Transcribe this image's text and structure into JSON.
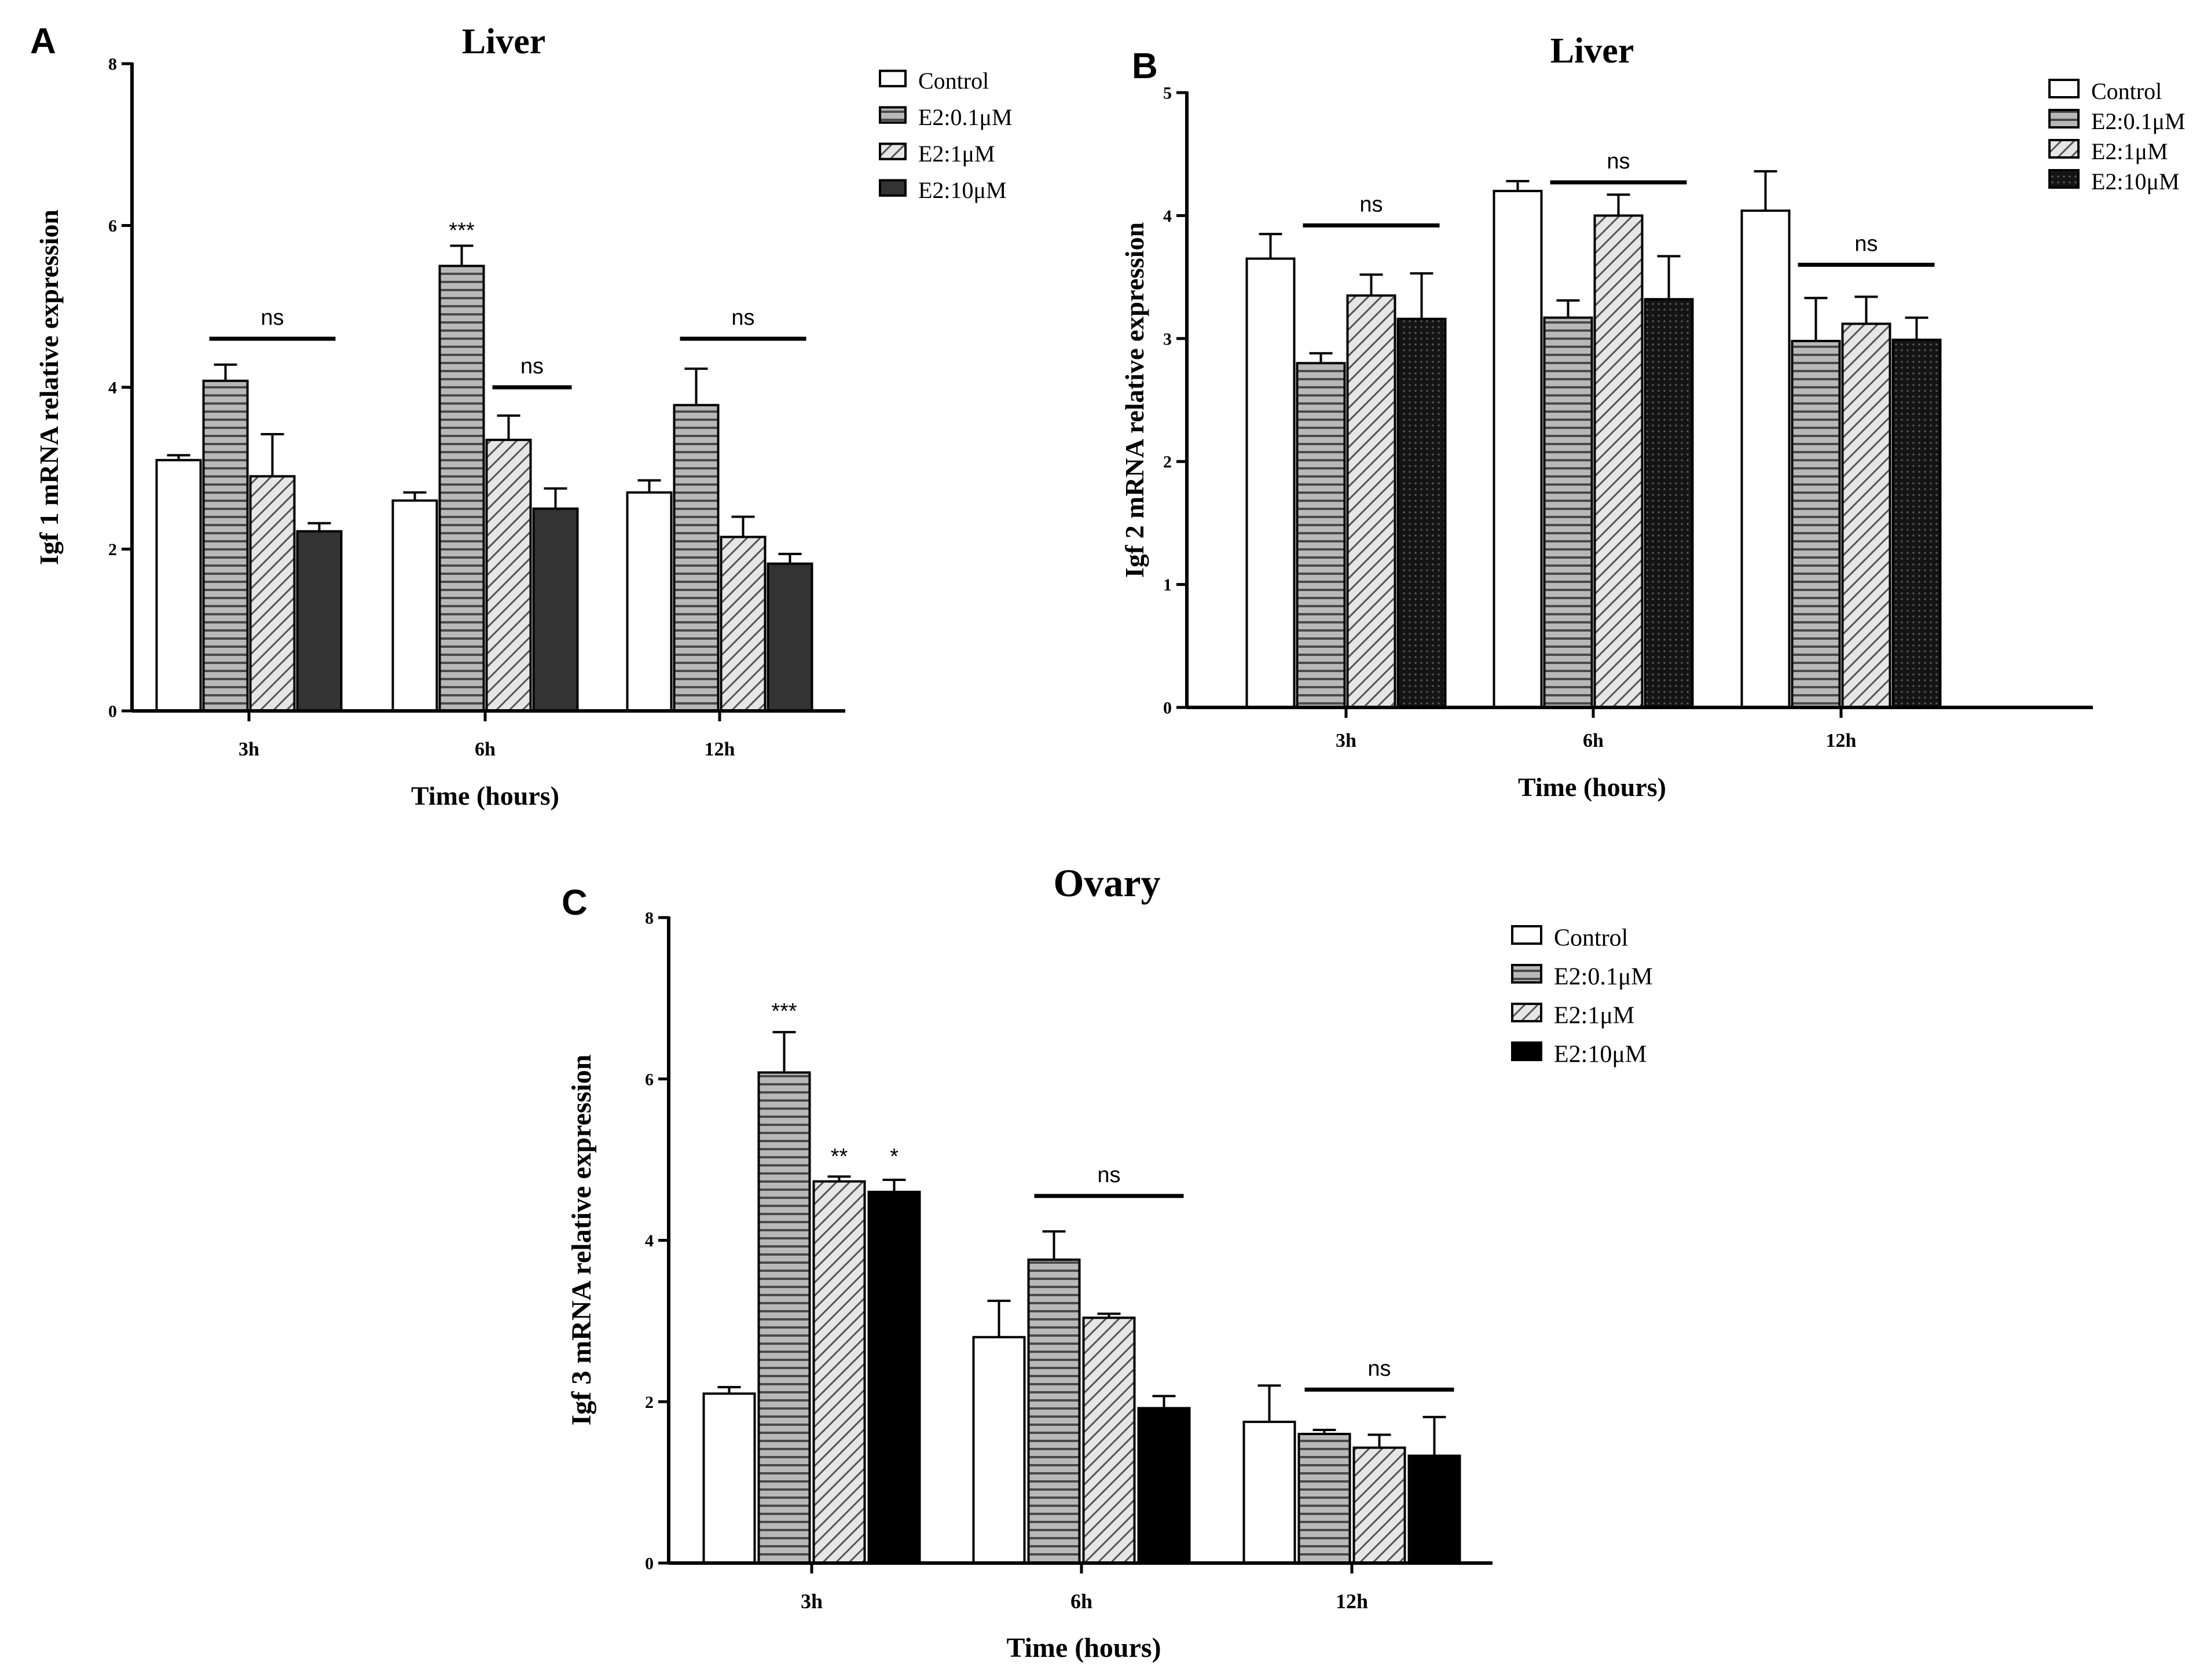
{
  "colors": {
    "axis": "#000000",
    "control": "#ffffff",
    "e2_01": "#a8a8a8",
    "e2_1": "#c8c8c8",
    "e2_10_A": "#333333",
    "e2_10_B": "#111111",
    "e2_10_C": "#000000"
  },
  "chart_data": [
    {
      "panel": "A",
      "type": "bar",
      "title": "Liver",
      "xlabel": "Time (hours)",
      "ylabel": "Igf 1 mRNA relative expression",
      "ylim": [
        0,
        8
      ],
      "yticks": [
        "0",
        "2",
        "4",
        "6",
        "8"
      ],
      "categories": [
        "3h",
        "6h",
        "12h"
      ],
      "legend": [
        "Control",
        "E2:0.1μM",
        "E2:1μM",
        "E2:10μM"
      ],
      "series": [
        {
          "name": "Control",
          "pattern": "white",
          "values": [
            3.1,
            2.6,
            2.7
          ],
          "errors": [
            0.06,
            0.1,
            0.15
          ]
        },
        {
          "name": "E2:0.1μM",
          "pattern": "hlines",
          "values": [
            4.08,
            5.5,
            3.78
          ],
          "errors": [
            0.2,
            0.25,
            0.45
          ]
        },
        {
          "name": "E2:1μM",
          "pattern": "diag",
          "values": [
            2.9,
            3.35,
            2.15
          ],
          "errors": [
            0.52,
            0.3,
            0.25
          ]
        },
        {
          "name": "E2:10μM",
          "pattern": "dark",
          "values": [
            2.22,
            2.5,
            1.82
          ],
          "errors": [
            0.1,
            0.25,
            0.12
          ]
        }
      ],
      "annotations": [
        {
          "text": "ns",
          "category": 0,
          "from_series": 1,
          "to_series": 3,
          "y": 4.6
        },
        {
          "text": "***",
          "category": 1,
          "series": 1,
          "y": 5.85
        },
        {
          "text": "ns",
          "category": 1,
          "from_series": 2,
          "to_series": 3,
          "y": 4.0
        },
        {
          "text": "ns",
          "category": 2,
          "from_series": 1,
          "to_series": 3,
          "y": 4.6
        }
      ]
    },
    {
      "panel": "B",
      "type": "bar",
      "title": "Liver",
      "xlabel": "Time (hours)",
      "ylabel": "Igf 2 mRNA relative expression",
      "ylim": [
        0,
        5
      ],
      "yticks": [
        "0",
        "1",
        "2",
        "3",
        "4",
        "5"
      ],
      "categories": [
        "3h",
        "6h",
        "12h"
      ],
      "legend": [
        "Control",
        "E2:0.1μM",
        "E2:1μM",
        "E2:10μM"
      ],
      "series": [
        {
          "name": "Control",
          "pattern": "white",
          "values": [
            3.65,
            4.2,
            4.04
          ],
          "errors": [
            0.2,
            0.08,
            0.32
          ]
        },
        {
          "name": "E2:0.1μM",
          "pattern": "hlines",
          "values": [
            2.8,
            3.17,
            2.98
          ],
          "errors": [
            0.08,
            0.14,
            0.35
          ]
        },
        {
          "name": "E2:1μM",
          "pattern": "diag",
          "values": [
            3.35,
            4.0,
            3.12
          ],
          "errors": [
            0.17,
            0.17,
            0.22
          ]
        },
        {
          "name": "E2:10μM",
          "pattern": "dots",
          "values": [
            3.16,
            3.32,
            2.99
          ],
          "errors": [
            0.37,
            0.35,
            0.18
          ]
        }
      ],
      "annotations": [
        {
          "text": "ns",
          "category": 0,
          "from_series": 1,
          "to_series": 3,
          "y": 3.92
        },
        {
          "text": "ns",
          "category": 1,
          "from_series": 1,
          "to_series": 3,
          "y": 4.27
        },
        {
          "text": "ns",
          "category": 2,
          "from_series": 1,
          "to_series": 3,
          "y": 3.6
        }
      ]
    },
    {
      "panel": "C",
      "type": "bar",
      "title": "Ovary",
      "xlabel": "Time (hours)",
      "ylabel": "Igf 3 mRNA relative expression",
      "ylim": [
        0,
        8
      ],
      "yticks": [
        "0",
        "2",
        "4",
        "6",
        "8"
      ],
      "categories": [
        "3h",
        "6h",
        "12h"
      ],
      "legend": [
        "Control",
        "E2:0.1μM",
        "E2:1μM",
        "E2:10μM"
      ],
      "series": [
        {
          "name": "Control",
          "pattern": "white",
          "values": [
            2.1,
            2.8,
            1.75
          ],
          "errors": [
            0.08,
            0.45,
            0.45
          ]
        },
        {
          "name": "E2:0.1μM",
          "pattern": "hlines",
          "values": [
            6.08,
            3.76,
            1.6
          ],
          "errors": [
            0.5,
            0.35,
            0.05
          ]
        },
        {
          "name": "E2:1μM",
          "pattern": "diag",
          "values": [
            4.73,
            3.04,
            1.43
          ],
          "errors": [
            0.06,
            0.05,
            0.16
          ]
        },
        {
          "name": "E2:10μM",
          "pattern": "black",
          "values": [
            4.6,
            1.92,
            1.33
          ],
          "errors": [
            0.15,
            0.15,
            0.48
          ]
        }
      ],
      "annotations": [
        {
          "text": "***",
          "category": 0,
          "series": 1,
          "y": 6.75
        },
        {
          "text": "**",
          "category": 0,
          "series": 2,
          "y": 4.95
        },
        {
          "text": "*",
          "category": 0,
          "series": 3,
          "y": 4.95
        },
        {
          "text": "ns",
          "category": 1,
          "from_series": 1,
          "to_series": 3,
          "y": 4.55
        },
        {
          "text": "ns",
          "category": 2,
          "from_series": 1,
          "to_series": 3,
          "y": 2.15
        }
      ]
    }
  ]
}
